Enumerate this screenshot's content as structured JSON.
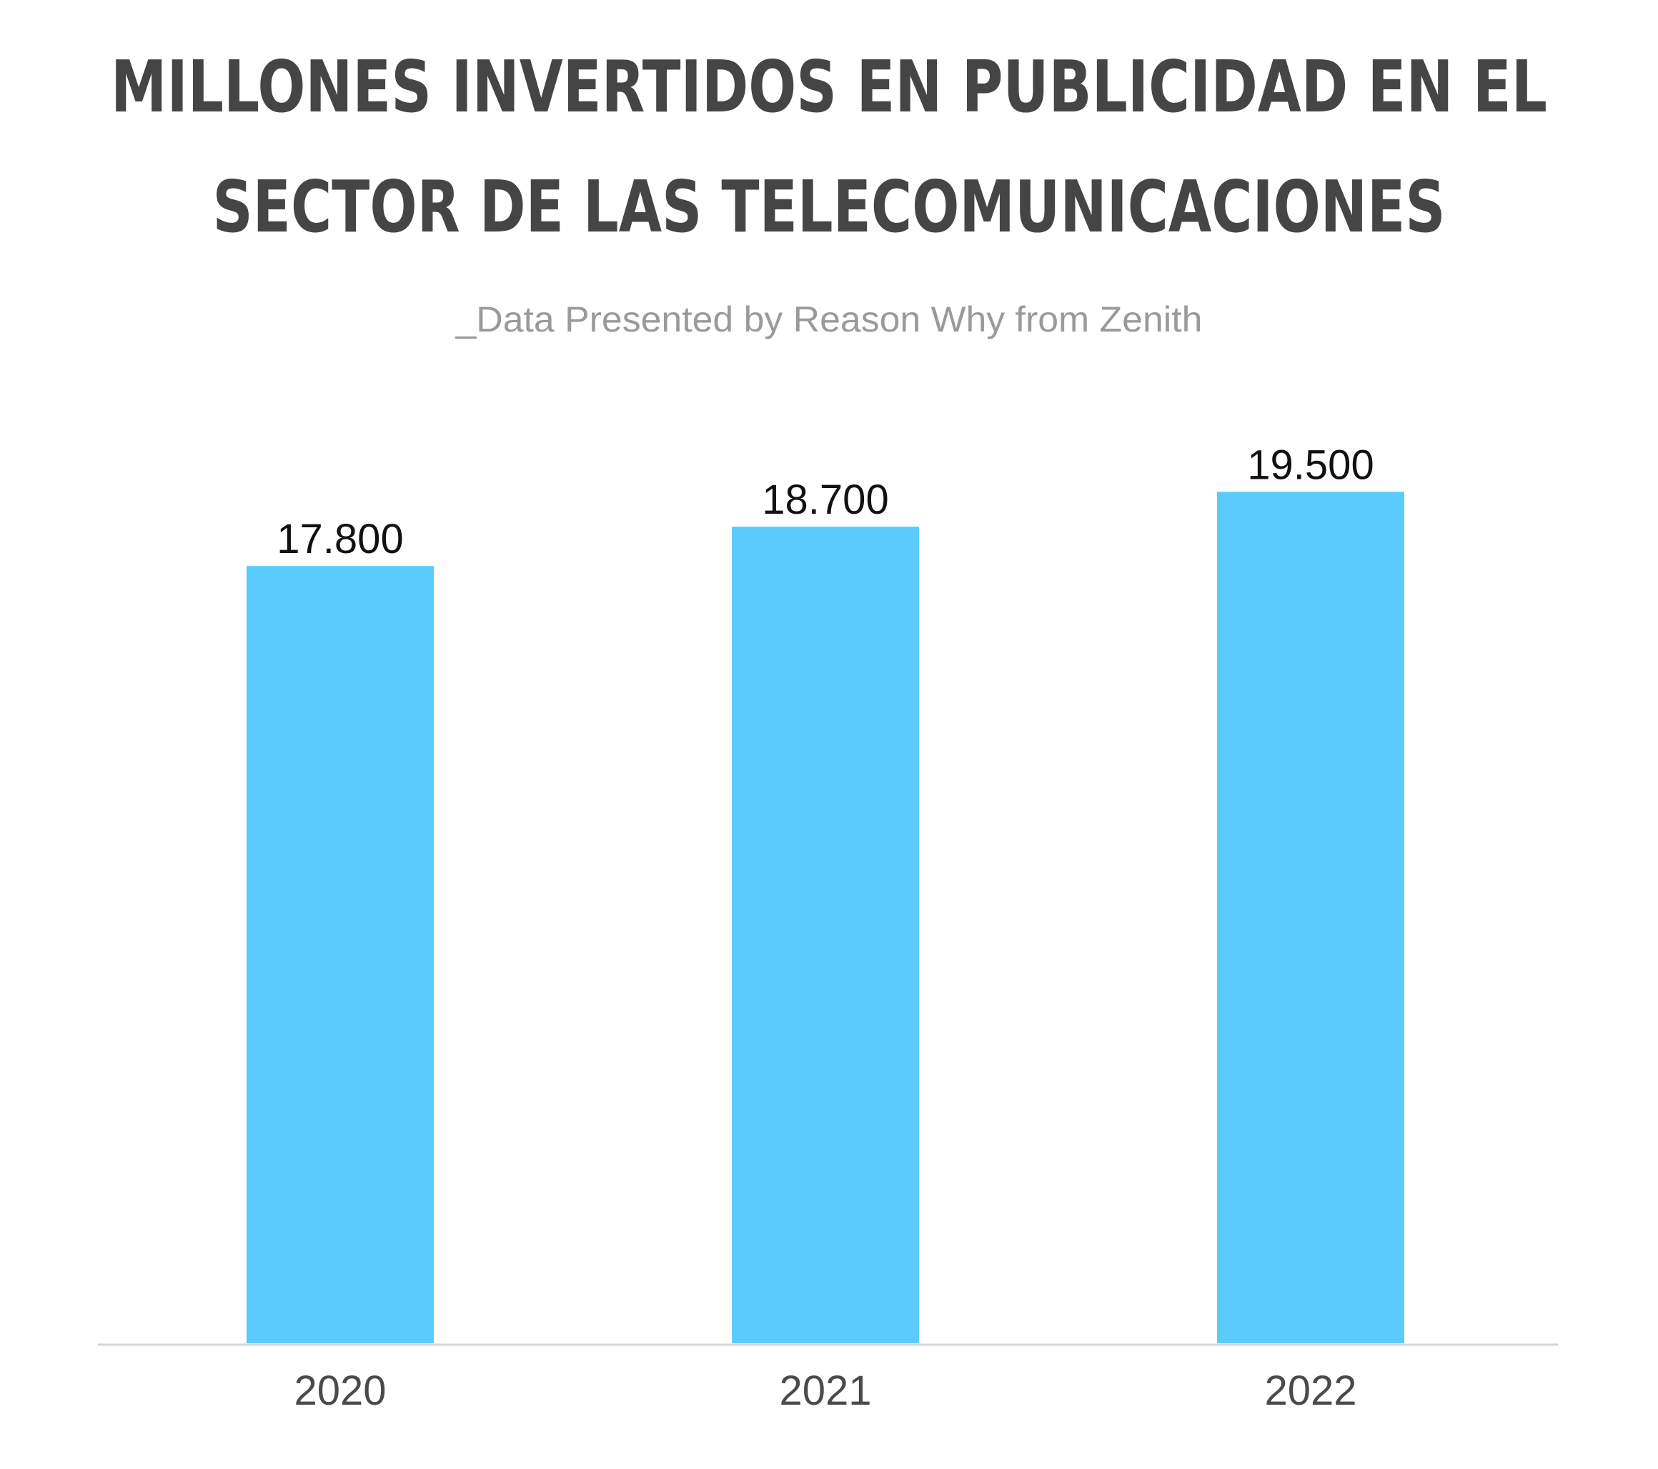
{
  "chart_data": {
    "type": "bar",
    "title_lines": [
      "MILLONES INVERTIDOS EN PUBLICIDAD EN EL",
      "SECTOR DE LAS TELECOMUNICACIONES"
    ],
    "subtitle": "_Data Presented by Reason Why from Zenith",
    "categories": [
      "2020",
      "2021",
      "2022"
    ],
    "values": [
      17800,
      18700,
      19500
    ],
    "value_labels": [
      "17.800",
      "18.700",
      "19.500"
    ],
    "ylim": [
      0,
      21600
    ],
    "grid": false,
    "legend": "none",
    "colors": {
      "bar": "#5BCBFC",
      "axis": "#d6d6d6",
      "title": "#454545",
      "subtitle": "#9a9a9a"
    }
  }
}
